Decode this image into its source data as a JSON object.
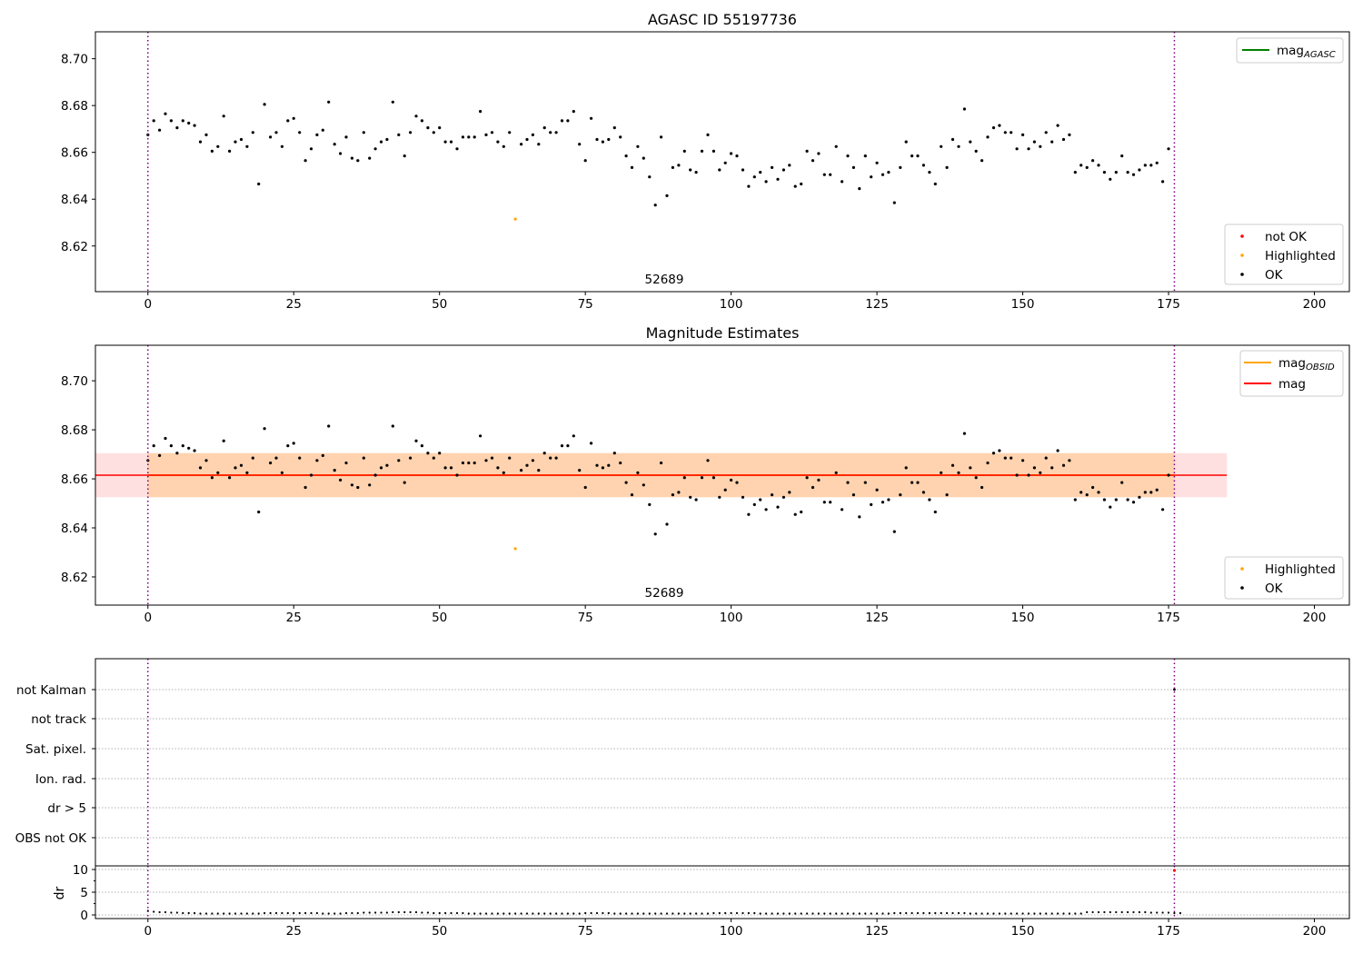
{
  "chart_data": [
    {
      "id": "top",
      "type": "scatter",
      "title": "AGASC ID 55197736",
      "xlim": [
        -9,
        206
      ],
      "ylim": [
        8.6005,
        8.7115
      ],
      "xticks": [
        0,
        25,
        50,
        75,
        100,
        125,
        150,
        175,
        200
      ],
      "yticks": [
        8.62,
        8.64,
        8.66,
        8.68,
        8.7
      ],
      "ytick_labels": [
        "8.62",
        "8.64",
        "8.66",
        "8.68",
        "8.70"
      ],
      "vlines": [
        0,
        176
      ],
      "annotation": {
        "text": "52689",
        "x": 88,
        "y": 8.6035
      },
      "legend_top": {
        "placement": "top-right",
        "entries": [
          {
            "label": "mag",
            "sub": "AGASC",
            "color": "#008000",
            "kind": "line"
          }
        ]
      },
      "legend_bottom": {
        "placement": "bottom-right",
        "entries": [
          {
            "label": "not OK",
            "color": "#ff0000",
            "kind": "point"
          },
          {
            "label": "Highlighted",
            "color": "#ffa500",
            "kind": "point"
          },
          {
            "label": "OK",
            "color": "#000000",
            "kind": "point"
          }
        ]
      }
    },
    {
      "id": "mid",
      "type": "scatter",
      "title": "Magnitude Estimates",
      "xlim": [
        -9,
        206
      ],
      "ylim": [
        8.6085,
        8.7145
      ],
      "xticks": [
        0,
        25,
        50,
        75,
        100,
        125,
        150,
        175,
        200
      ],
      "yticks": [
        8.62,
        8.64,
        8.66,
        8.68,
        8.7
      ],
      "ytick_labels": [
        "8.62",
        "8.64",
        "8.66",
        "8.68",
        "8.70"
      ],
      "vlines": [
        0,
        176
      ],
      "annotation": {
        "text": "52689",
        "x": 88,
        "y": 8.6115
      },
      "mean_mag": 8.6615,
      "mag_band": [
        8.6525,
        8.6705
      ],
      "mag_band_x": [
        -9,
        185
      ],
      "obsid_band_x": [
        0,
        176
      ],
      "legend_top": {
        "placement": "top-right",
        "entries": [
          {
            "label": "mag",
            "sub": "OBSID",
            "color": "#ffa500",
            "kind": "line"
          },
          {
            "label": "mag",
            "sub": "",
            "color": "#ff0000",
            "kind": "line"
          }
        ]
      },
      "legend_bottom": {
        "placement": "bottom-right",
        "entries": [
          {
            "label": "Highlighted",
            "color": "#ffa500",
            "kind": "point"
          },
          {
            "label": "OK",
            "color": "#000000",
            "kind": "point"
          }
        ]
      }
    },
    {
      "id": "flags",
      "type": "scatter",
      "xlim": [
        -9,
        206
      ],
      "categories": [
        "not Kalman",
        "not track",
        "Sat. pixel.",
        "Ion. rad.",
        "dr > 5",
        "OBS not OK"
      ],
      "vlines": [
        0,
        176
      ],
      "flag_markers": [
        {
          "x": 176,
          "category": "not Kalman"
        }
      ]
    },
    {
      "id": "dr",
      "type": "scatter",
      "xlim": [
        -9,
        206
      ],
      "ylim": [
        -0.8,
        10.8
      ],
      "ylabel": "dr",
      "xticks": [
        0,
        25,
        50,
        75,
        100,
        125,
        150,
        175,
        200
      ],
      "yticks": [
        0,
        5,
        10
      ],
      "ytick_labels": [
        "0",
        "5",
        "10"
      ],
      "vlines": [
        0,
        176
      ],
      "highlight_point": {
        "x": 176,
        "y": 9.8
      }
    }
  ],
  "series_mag": [
    8.6675,
    8.6735,
    8.6695,
    8.6765,
    8.6735,
    8.6705,
    8.6735,
    8.6725,
    8.6715,
    8.6645,
    8.6675,
    8.6605,
    8.6625,
    8.6755,
    8.6605,
    8.6645,
    8.6655,
    8.6625,
    8.6685,
    8.6465,
    8.6805,
    8.6665,
    8.6685,
    8.6625,
    8.6735,
    8.6745,
    8.6685,
    8.6565,
    8.6615,
    8.6675,
    8.6695,
    8.6815,
    8.6635,
    8.6595,
    8.6665,
    8.6575,
    8.6565,
    8.6685,
    8.6575,
    8.6615,
    8.6645,
    8.6655,
    8.6815,
    8.6675,
    8.6585,
    8.6685,
    8.6755,
    8.6735,
    8.6705,
    8.6685,
    8.6705,
    8.6645,
    8.6645,
    8.6615,
    8.6665,
    8.6665,
    8.6665,
    8.6775,
    8.6675,
    8.6685,
    8.6645,
    8.6625,
    8.6685,
    8.6315,
    8.6635,
    8.6655,
    8.6675,
    8.6635,
    8.6705,
    8.6685,
    8.6685,
    8.6735,
    8.6735,
    8.6775,
    8.6635,
    8.6565,
    8.6745,
    8.6655,
    8.6645,
    8.6655,
    8.6705,
    8.6665,
    8.6585,
    8.6535,
    8.6625,
    8.6575,
    8.6495,
    8.6375,
    8.6665,
    8.6415,
    8.6535,
    8.6545,
    8.6605,
    8.6525,
    8.6515,
    8.6605,
    8.6675,
    8.6605,
    8.6525,
    8.6555,
    8.6595,
    8.6585,
    8.6525,
    8.6455,
    8.6495,
    8.6515,
    8.6475,
    8.6535,
    8.6485,
    8.6525,
    8.6545,
    8.6455,
    8.6465,
    8.6605,
    8.6565,
    8.6595,
    8.6505,
    8.6505,
    8.6625,
    8.6475,
    8.6585,
    8.6535,
    8.6445,
    8.6585,
    8.6495,
    8.6555,
    8.6505,
    8.6515,
    8.6385,
    8.6535,
    8.6645,
    8.6585,
    8.6585,
    8.6545,
    8.6515,
    8.6465,
    8.6625,
    8.6535,
    8.6655,
    8.6625,
    8.6785,
    8.6645,
    8.6605,
    8.6565,
    8.6665,
    8.6705,
    8.6715,
    8.6685,
    8.6685,
    8.6615,
    8.6675,
    8.6615,
    8.6645,
    8.6625,
    8.6685,
    8.6645,
    8.6715,
    8.6655,
    8.6675,
    8.6515,
    8.6545,
    8.6535,
    8.6565,
    8.6545,
    8.6515,
    8.6485,
    8.6515,
    8.6585,
    8.6515,
    8.6505,
    8.6525,
    8.6545,
    8.6545,
    8.6555,
    8.6475,
    8.6615
  ],
  "highlight_index": 63,
  "series_dr": [
    0.9,
    0.7,
    0.6,
    0.6,
    0.5,
    0.5,
    0.4,
    0.4,
    0.4,
    0.3,
    0.3,
    0.3,
    0.3,
    0.3,
    0.3,
    0.3,
    0.3,
    0.3,
    0.3,
    0.3,
    0.4,
    0.4,
    0.4,
    0.4,
    0.4,
    0.4,
    0.4,
    0.4,
    0.4,
    0.4,
    0.3,
    0.3,
    0.3,
    0.3,
    0.4,
    0.4,
    0.4,
    0.5,
    0.5,
    0.5,
    0.5,
    0.5,
    0.6,
    0.6,
    0.6,
    0.6,
    0.6,
    0.5,
    0.5,
    0.4,
    0.4,
    0.4,
    0.4,
    0.4,
    0.4,
    0.3,
    0.3,
    0.3,
    0.3,
    0.3,
    0.3,
    0.3,
    0.3,
    0.3,
    0.3,
    0.3,
    0.3,
    0.3,
    0.3,
    0.3,
    0.3,
    0.3,
    0.3,
    0.3,
    0.3,
    0.4,
    0.4,
    0.4,
    0.4,
    0.4,
    0.3,
    0.3,
    0.3,
    0.3,
    0.3,
    0.3,
    0.3,
    0.3,
    0.3,
    0.3,
    0.3,
    0.3,
    0.3,
    0.3,
    0.3,
    0.3,
    0.3,
    0.4,
    0.4,
    0.4,
    0.4,
    0.4,
    0.4,
    0.4,
    0.4,
    0.3,
    0.3,
    0.3,
    0.3,
    0.3,
    0.3,
    0.3,
    0.3,
    0.3,
    0.3,
    0.3,
    0.3,
    0.3,
    0.3,
    0.3,
    0.3,
    0.3,
    0.3,
    0.3,
    0.3,
    0.3,
    0.3,
    0.3,
    0.4,
    0.4,
    0.4,
    0.4,
    0.4,
    0.4,
    0.4,
    0.4,
    0.4,
    0.4,
    0.4,
    0.4,
    0.4,
    0.3,
    0.3,
    0.3,
    0.3,
    0.3,
    0.3,
    0.3,
    0.3,
    0.3,
    0.3,
    0.3,
    0.3,
    0.3,
    0.3,
    0.3,
    0.3,
    0.3,
    0.3,
    0.3,
    0.3,
    0.6,
    0.6,
    0.6,
    0.6,
    0.6,
    0.6,
    0.6,
    0.6,
    0.6,
    0.6,
    0.6,
    0.5,
    0.5,
    0.5,
    0.5,
    0.4,
    0.4
  ]
}
